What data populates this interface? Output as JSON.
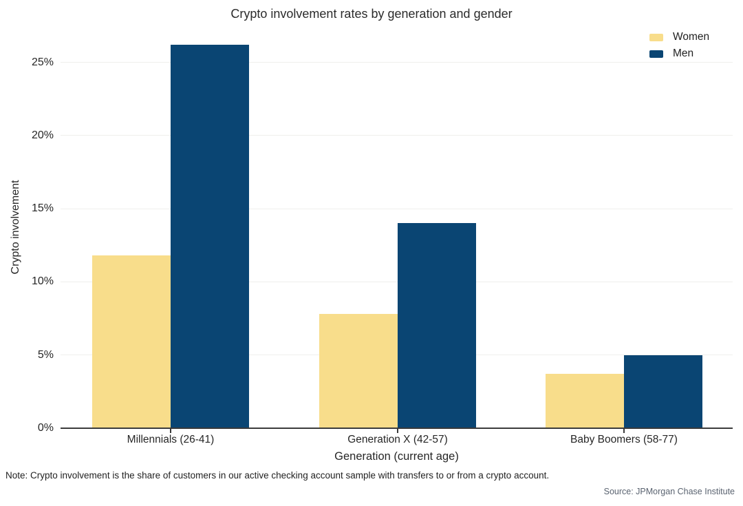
{
  "chart_data": {
    "type": "bar",
    "title": "Crypto involvement rates by generation and gender",
    "categories": [
      "Millennials (26-41)",
      "Generation X (42-57)",
      "Baby Boomers (58-77)"
    ],
    "series": [
      {
        "name": "Women",
        "color": "#f8dd8b",
        "values": [
          11.8,
          7.8,
          3.7
        ]
      },
      {
        "name": "Men",
        "color": "#0a4573",
        "values": [
          26.2,
          14.0,
          5.0
        ]
      }
    ],
    "xlabel": "Generation (current age)",
    "ylabel": "Crypto involvement",
    "ylim": [
      0,
      27.5
    ],
    "yticks": [
      0,
      5,
      10,
      15,
      20,
      25
    ],
    "ytick_suffix": "%",
    "grid": true,
    "legend_position": "top-right"
  },
  "note": "Note: Crypto involvement is the share of customers in our active checking account sample with transfers to or from a crypto account.",
  "source": "Source: JPMorgan Chase Institute"
}
